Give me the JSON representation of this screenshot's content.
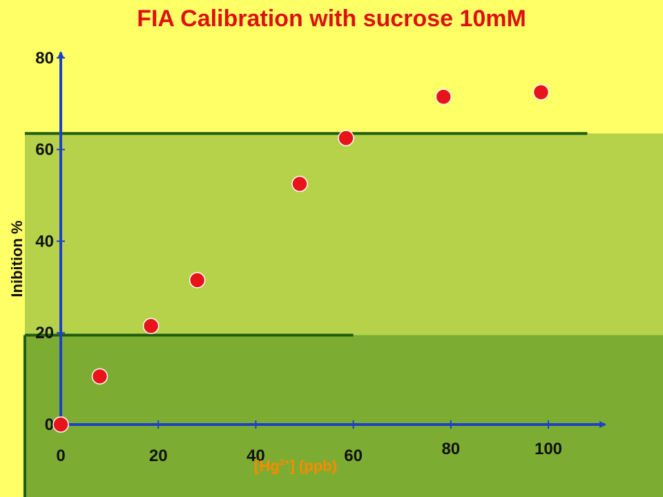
{
  "colors": {
    "background": "#ffff66",
    "band_light": "#b5d24a",
    "band_dark": "#7cad32",
    "threshold_line": "#1e5d12",
    "point": "#e8141c",
    "axis": "#1e40c8",
    "title": "#dd1111",
    "xlabel": "#ff8800"
  },
  "chart_data": {
    "type": "scatter",
    "title": "FIA Calibration with sucrose 10mM",
    "xlabel_prefix": "[Hg",
    "xlabel_sup": "2+",
    "xlabel_suffix": "]  (ppb)",
    "ylabel": "Inibition %",
    "xlim": [
      0,
      110
    ],
    "ylim": [
      0,
      82
    ],
    "x_ticks": [
      0,
      20,
      40,
      60,
      80,
      100
    ],
    "y_ticks": [
      0,
      20,
      40,
      60,
      80
    ],
    "x_tick_labels": [
      "0",
      "20",
      "40",
      "60",
      "80",
      "100"
    ],
    "y_tick_labels": [
      "0",
      "20",
      "40",
      "60",
      "80"
    ],
    "x": [
      0,
      8,
      18.5,
      28,
      49,
      58.5,
      78.5,
      98.5
    ],
    "y": [
      0,
      10.5,
      21.5,
      31.5,
      52.5,
      62.5,
      71.5,
      72.5
    ],
    "threshold_lines": [
      {
        "y": 19.5,
        "x_end": 60
      },
      {
        "y": 63.5,
        "x_end": 108
      }
    ],
    "bands": [
      {
        "y_from": 19.5,
        "y_to": 63.5,
        "shade": "light"
      },
      {
        "y_from": -100,
        "y_to": 19.5,
        "shade": "dark"
      }
    ]
  }
}
